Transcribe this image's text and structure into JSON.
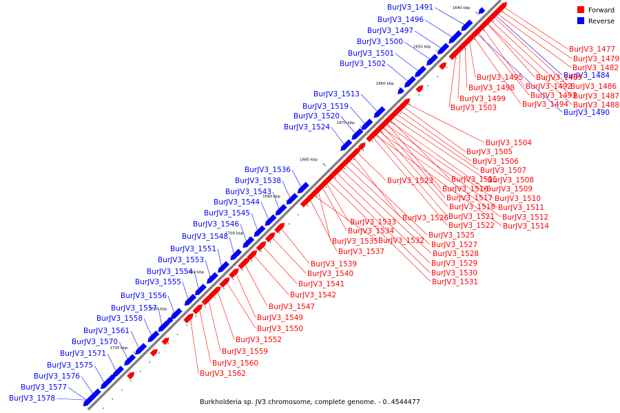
{
  "caption": "Burkholderia sp. JV3 chromosome, complete genome. - 0..4544477",
  "legend": [
    {
      "label": "Forward",
      "color": "#ff0000"
    },
    {
      "label": "Reverse",
      "color": "#0000ff"
    }
  ],
  "colors": {
    "forward": "#ff0000",
    "reverse": "#0000ff",
    "backbone": "#7f7f7f"
  },
  "ticks": [
    "1640 kbp",
    "1650 kbp",
    "1660 kbp",
    "1670 kbp",
    "1680 kbp",
    "1690 kbp",
    "1700 kbp",
    "1710 kbp",
    "1720 kbp",
    "1730 kbp"
  ],
  "genes_reverse": [
    "BurJV3_1491",
    "BurJV3_1496",
    "BurJV3_1497",
    "BurJV3_1500",
    "BurJV3_1501",
    "BurJV3_1502",
    "BurJV3_1513",
    "BurJV3_1519",
    "BurJV3_1520",
    "BurJV3_1524",
    "BurJV3_1536",
    "BurJV3_1538",
    "BurJV3_1543",
    "BurJV3_1544",
    "BurJV3_1545",
    "BurJV3_1546",
    "BurJV3_1548",
    "BurJV3_1551",
    "BurJV3_1553",
    "BurJV3_1554",
    "BurJV3_1555",
    "BurJV3_1556",
    "BurJV3_1557",
    "BurJV3_1558",
    "BurJV3_1561",
    "BurJV3_1570",
    "BurJV3_1571",
    "BurJV3_1575",
    "BurJV3_1576",
    "BurJV3_1577",
    "BurJV3_1578",
    "BurJV3_1484",
    "BurJV3_1490"
  ],
  "genes_forward_far": [
    "BurJV3_1477",
    "BurJV3_1479",
    "BurJV3_1482",
    "BurJV3_1486",
    "BurJV3_1487",
    "BurJV3_1488"
  ],
  "genes_forward_mid": [
    "BurJV3_1489",
    "BurJV3_1492",
    "BurJV3_1493",
    "BurJV3_1494",
    "BurJV3_1495",
    "BurJV3_1498",
    "BurJV3_1499",
    "BurJV3_1503"
  ],
  "genes_forward_col1": [
    "BurJV3_1504",
    "BurJV3_1505",
    "BurJV3_1506",
    "BurJV3_1507",
    "BurJV3_1508",
    "BurJV3_1509",
    "BurJV3_1510",
    "BurJV3_1511",
    "BurJV3_1512",
    "BurJV3_1514"
  ],
  "genes_forward_col2": [
    "BurJV3_1515",
    "BurJV3_1516",
    "BurJV3_1517",
    "BurJV3_1518",
    "BurJV3_1521",
    "BurJV3_1522"
  ],
  "genes_forward_col3": [
    "BurJV3_1523",
    "BurJV3_1526",
    "BurJV3_1525",
    "BurJV3_1527",
    "BurJV3_1528",
    "BurJV3_1529",
    "BurJV3_1530",
    "BurJV3_1531"
  ],
  "genes_forward_col4": [
    "BurJV3_1533",
    "BurJV3_1534",
    "BurJV3_1535",
    "BurJV3_1532",
    "BurJV3_1537"
  ],
  "genes_forward_low": [
    "BurJV3_1539",
    "BurJV3_1540",
    "BurJV3_1541",
    "BurJV3_1542",
    "BurJV3_1547",
    "BurJV3_1549",
    "BurJV3_1550",
    "BurJV3_1552",
    "BurJV3_1559",
    "BurJV3_1560",
    "BurJV3_1562"
  ]
}
